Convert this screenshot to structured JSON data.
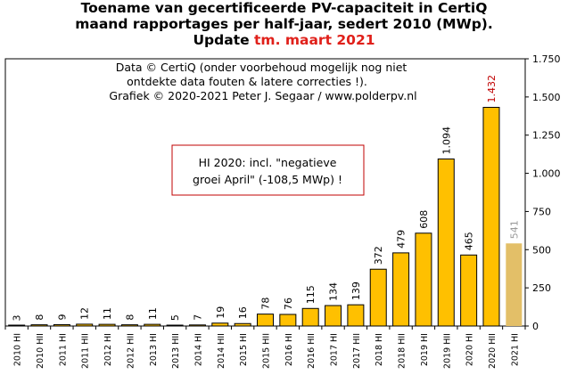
{
  "title": {
    "line1": "Toename van gecertificeerde PV-capaciteit in CertiQ",
    "line2": "maand rapportages per half-jaar, sedert 2010 (MWp).",
    "line3_prefix": "Update ",
    "line3_highlight": "tm. maart 2021"
  },
  "credits": {
    "line1": "Data © CertiQ (onder voorbehoud mogelijk nog niet",
    "line2": "ontdekte data fouten & latere correcties !).",
    "line3": "Grafiek © 2020-2021 Peter J. Segaar / www.polderpv.nl"
  },
  "annotation": {
    "line1": "HI 2020: incl. \"negatieve",
    "line2": "groei April\"  (-108,5 MWp) !"
  },
  "colors": {
    "bar": "#ffc000",
    "bar_partial": "#e3bf68",
    "label_last_full": "#c00000",
    "label_partial": "#999999",
    "annotation_border": "#c00000"
  },
  "chart_data": {
    "type": "bar",
    "categories": [
      "2010 HI",
      "2010 HII",
      "2011 HI",
      "2011 HII",
      "2012 HI",
      "2012 HII",
      "2013 HI",
      "2013 HII",
      "2014 HI",
      "2014 HII",
      "2015 HI",
      "2015 HII",
      "2016 HI",
      "2016 HII",
      "2017 HI",
      "2017 HII",
      "2018 HI",
      "2018 HII",
      "2019 HI",
      "2019 HII",
      "2020 HI",
      "2020 HII",
      "2021 HI"
    ],
    "values": [
      3,
      8,
      9,
      12,
      11,
      8,
      11,
      5,
      7,
      19,
      16,
      78,
      76,
      115,
      134,
      139,
      372,
      479,
      608,
      1094,
      465,
      1432,
      541
    ],
    "value_labels": [
      "3",
      "8",
      "9",
      "12",
      "11",
      "8",
      "11",
      "5",
      "7",
      "19",
      "16",
      "78",
      "76",
      "115",
      "134",
      "139",
      "372",
      "479",
      "608",
      "1.094",
      "465",
      "1.432",
      "541"
    ],
    "ylim": [
      0,
      1750
    ],
    "yticks": [
      0,
      250,
      500,
      750,
      1000,
      1250,
      1500,
      1750
    ],
    "ytick_labels": [
      "0",
      "250",
      "500",
      "750",
      "1.000",
      "1.250",
      "1.500",
      "1.750"
    ],
    "y_axis_side": "right",
    "grid": false,
    "partial_index": 22
  }
}
